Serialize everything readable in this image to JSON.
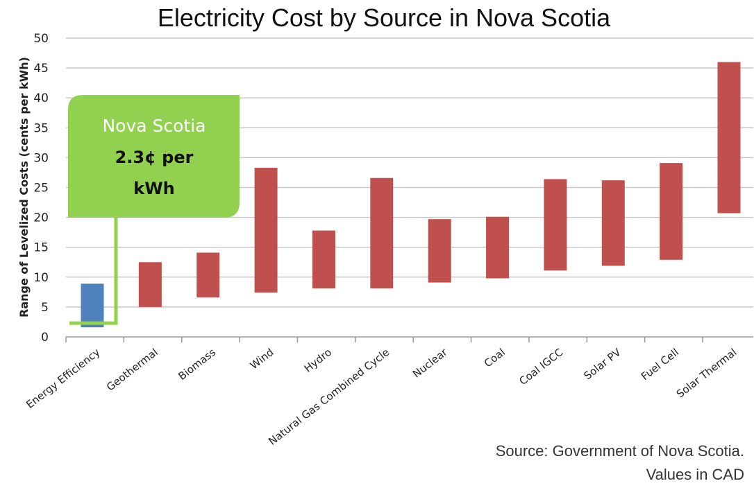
{
  "chart_data": {
    "type": "bar",
    "subtype": "floating-range",
    "title": "Electricity Cost by Source in Nova Scotia",
    "ylabel": "Range of Levelized Costs (cents per kWh)",
    "xlabel": "",
    "ylim": [
      0,
      50
    ],
    "yticks": [
      0,
      5,
      10,
      15,
      20,
      25,
      30,
      35,
      40,
      45,
      50
    ],
    "grid": true,
    "categories": [
      "Energy Efficiency",
      "Geothermal",
      "Biomass",
      "Wind",
      "Hydro",
      "Natural Gas Combined Cycle",
      "Nuclear",
      "Coal",
      "Coal IGCC",
      "Solar PV",
      "Fuel Cell",
      "Solar Thermal"
    ],
    "ranges": [
      [
        1.6,
        8.9
      ],
      [
        5.0,
        12.5
      ],
      [
        6.6,
        14.1
      ],
      [
        7.4,
        28.3
      ],
      [
        8.1,
        17.8
      ],
      [
        8.1,
        26.6
      ],
      [
        9.1,
        19.7
      ],
      [
        9.8,
        20.1
      ],
      [
        11.1,
        26.4
      ],
      [
        11.9,
        26.2
      ],
      [
        12.9,
        29.1
      ],
      [
        20.7,
        46.0
      ]
    ],
    "highlight_index": 0,
    "colors": {
      "highlight": "#4f81bd",
      "default": "#c0504d",
      "grid": "#c8c8c8",
      "axis": "#999999",
      "callout": "#92d050"
    },
    "annotation": {
      "line1": "Nova Scotia",
      "line2": "2.3¢ per",
      "line3": "kWh",
      "value": 2.3
    },
    "source_line1": "Source: Government of Nova Scotia.",
    "source_line2": "Values in CAD"
  }
}
